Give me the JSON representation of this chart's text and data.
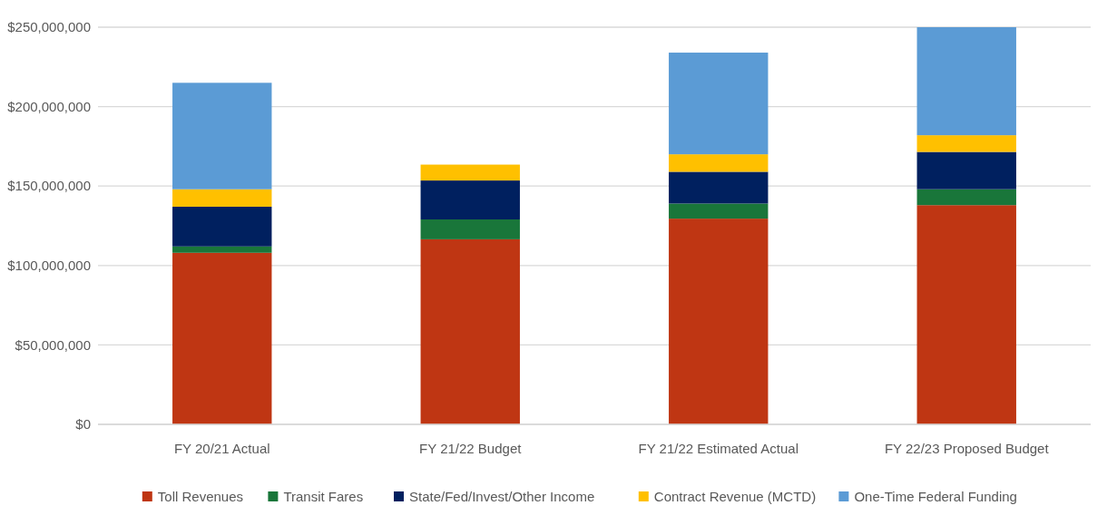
{
  "chart_data": {
    "type": "bar",
    "stacked": true,
    "categories": [
      "FY 20/21 Actual",
      "FY 21/22 Budget",
      "FY 21/22 Estimated Actual",
      "FY 22/23 Proposed Budget"
    ],
    "series": [
      {
        "name": "Toll Revenues",
        "color": "#bf3613",
        "values": [
          108000000,
          116500000,
          129500000,
          138000000
        ]
      },
      {
        "name": "Transit Fares",
        "color": "#19763a",
        "values": [
          4000000,
          12500000,
          9500000,
          10000000
        ]
      },
      {
        "name": "State/Fed/Invest/Other Income",
        "color": "#00205f",
        "values": [
          25000000,
          24500000,
          20000000,
          23500000
        ]
      },
      {
        "name": "Contract Revenue (MCTD)",
        "color": "#ffc000",
        "values": [
          11000000,
          10000000,
          11000000,
          10500000
        ]
      },
      {
        "name": "One-Time Federal Funding",
        "color": "#5b9bd5",
        "values": [
          67000000,
          null,
          64000000,
          68000000
        ]
      }
    ],
    "ylim": [
      0,
      250000000
    ],
    "yticks": [
      {
        "value": 0,
        "label": "$0"
      },
      {
        "value": 50000000,
        "label": "$50,000,000"
      },
      {
        "value": 100000000,
        "label": "$100,000,000"
      },
      {
        "value": 150000000,
        "label": "$150,000,000"
      },
      {
        "value": 200000000,
        "label": "$200,000,000"
      },
      {
        "value": 250000000,
        "label": "$250,000,000"
      }
    ],
    "grid": "y",
    "legend": "bottom"
  }
}
